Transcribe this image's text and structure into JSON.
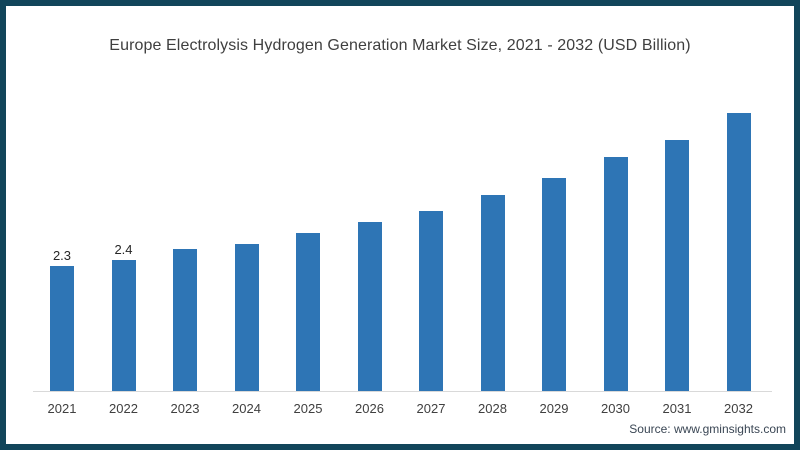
{
  "title": {
    "text": "Europe Electrolysis Hydrogen Generation Market Size, 2021 - 2032 (USD Billion)",
    "color": "#3f3f3f"
  },
  "source": {
    "text": "Source: www.gminsights.com",
    "color": "#3a4654"
  },
  "frame": {
    "border_color": "#11455a",
    "background_color": "#ffffff"
  },
  "chart_data": {
    "type": "bar",
    "title": "Europe Electrolysis Hydrogen Generation Market Size, 2021 - 2032 (USD Billion)",
    "categories": [
      "2021",
      "2022",
      "2023",
      "2024",
      "2025",
      "2026",
      "2027",
      "2028",
      "2029",
      "2030",
      "2031",
      "2032"
    ],
    "values": [
      2.3,
      2.4,
      2.6,
      2.7,
      2.9,
      3.1,
      3.3,
      3.6,
      3.9,
      4.3,
      4.6,
      5.1
    ],
    "data_labels": [
      "2.3",
      "2.4",
      null,
      null,
      null,
      null,
      null,
      null,
      null,
      null,
      null,
      null
    ],
    "xlabel": "",
    "ylabel": "",
    "ylim": [
      0,
      5.5
    ],
    "grid": false,
    "legend": false,
    "bar_color": "#2e75b5",
    "axis_line_color": "#d9d9d9",
    "tick_label_color": "#404040",
    "data_label_color": "#262626"
  }
}
